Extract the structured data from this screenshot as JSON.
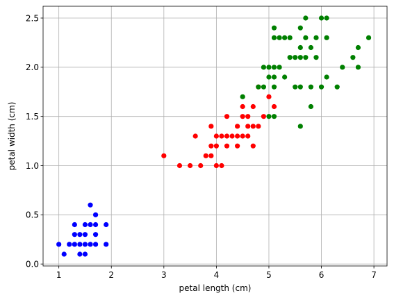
{
  "chart_data": {
    "type": "scatter",
    "xlabel": "petal length (cm)",
    "ylabel": "petal width (cm)",
    "xlim": [
      0.7,
      7.25
    ],
    "ylim": [
      -0.02,
      2.62
    ],
    "xticks": [
      1,
      2,
      3,
      4,
      5,
      6,
      7
    ],
    "yticks": [
      0.0,
      0.5,
      1.0,
      1.5,
      2.0,
      2.5
    ],
    "xtick_labels": [
      "1",
      "2",
      "3",
      "4",
      "5",
      "6",
      "7"
    ],
    "ytick_labels": [
      "0.0",
      "0.5",
      "1.0",
      "1.5",
      "2.0",
      "2.5"
    ],
    "grid": true,
    "series": [
      {
        "color": "#0000ff",
        "points": [
          [
            1.0,
            0.2
          ],
          [
            1.1,
            0.1
          ],
          [
            1.2,
            0.2
          ],
          [
            1.3,
            0.2
          ],
          [
            1.3,
            0.3
          ],
          [
            1.3,
            0.4
          ],
          [
            1.4,
            0.1
          ],
          [
            1.4,
            0.2
          ],
          [
            1.4,
            0.3
          ],
          [
            1.5,
            0.1
          ],
          [
            1.5,
            0.2
          ],
          [
            1.5,
            0.3
          ],
          [
            1.5,
            0.4
          ],
          [
            1.6,
            0.2
          ],
          [
            1.6,
            0.4
          ],
          [
            1.6,
            0.6
          ],
          [
            1.7,
            0.2
          ],
          [
            1.7,
            0.3
          ],
          [
            1.7,
            0.4
          ],
          [
            1.7,
            0.5
          ],
          [
            1.9,
            0.2
          ],
          [
            1.9,
            0.4
          ]
        ]
      },
      {
        "color": "#ff0000",
        "points": [
          [
            3.0,
            1.1
          ],
          [
            3.3,
            1.0
          ],
          [
            3.5,
            1.0
          ],
          [
            3.6,
            1.3
          ],
          [
            3.7,
            1.0
          ],
          [
            3.8,
            1.1
          ],
          [
            3.9,
            1.1
          ],
          [
            3.9,
            1.2
          ],
          [
            3.9,
            1.4
          ],
          [
            4.0,
            1.0
          ],
          [
            4.0,
            1.2
          ],
          [
            4.0,
            1.3
          ],
          [
            4.1,
            1.0
          ],
          [
            4.1,
            1.3
          ],
          [
            4.2,
            1.2
          ],
          [
            4.2,
            1.3
          ],
          [
            4.2,
            1.5
          ],
          [
            4.3,
            1.3
          ],
          [
            4.4,
            1.2
          ],
          [
            4.4,
            1.3
          ],
          [
            4.4,
            1.4
          ],
          [
            4.5,
            1.3
          ],
          [
            4.5,
            1.5
          ],
          [
            4.5,
            1.6
          ],
          [
            4.6,
            1.3
          ],
          [
            4.6,
            1.4
          ],
          [
            4.6,
            1.5
          ],
          [
            4.7,
            1.2
          ],
          [
            4.7,
            1.4
          ],
          [
            4.7,
            1.6
          ],
          [
            4.8,
            1.4
          ],
          [
            4.8,
            1.8
          ],
          [
            4.9,
            1.5
          ],
          [
            5.0,
            1.7
          ],
          [
            5.1,
            1.6
          ]
        ]
      },
      {
        "color": "#008000",
        "points": [
          [
            4.5,
            1.7
          ],
          [
            4.8,
            1.8
          ],
          [
            4.9,
            1.8
          ],
          [
            4.9,
            2.0
          ],
          [
            5.0,
            1.5
          ],
          [
            5.0,
            1.9
          ],
          [
            5.0,
            2.0
          ],
          [
            5.1,
            1.5
          ],
          [
            5.1,
            1.8
          ],
          [
            5.1,
            1.9
          ],
          [
            5.1,
            2.0
          ],
          [
            5.1,
            2.3
          ],
          [
            5.1,
            2.4
          ],
          [
            5.2,
            2.0
          ],
          [
            5.2,
            2.3
          ],
          [
            5.3,
            1.9
          ],
          [
            5.3,
            2.3
          ],
          [
            5.4,
            2.1
          ],
          [
            5.4,
            2.3
          ],
          [
            5.5,
            1.8
          ],
          [
            5.5,
            2.1
          ],
          [
            5.6,
            1.4
          ],
          [
            5.6,
            1.8
          ],
          [
            5.6,
            2.1
          ],
          [
            5.6,
            2.2
          ],
          [
            5.6,
            2.4
          ],
          [
            5.7,
            2.1
          ],
          [
            5.7,
            2.3
          ],
          [
            5.7,
            2.5
          ],
          [
            5.8,
            1.6
          ],
          [
            5.8,
            1.8
          ],
          [
            5.8,
            2.2
          ],
          [
            5.9,
            2.1
          ],
          [
            5.9,
            2.3
          ],
          [
            6.0,
            1.8
          ],
          [
            6.0,
            2.5
          ],
          [
            6.1,
            1.9
          ],
          [
            6.1,
            2.3
          ],
          [
            6.1,
            2.5
          ],
          [
            6.3,
            1.8
          ],
          [
            6.4,
            2.0
          ],
          [
            6.6,
            2.1
          ],
          [
            6.7,
            2.0
          ],
          [
            6.7,
            2.2
          ],
          [
            6.9,
            2.3
          ]
        ]
      }
    ]
  }
}
